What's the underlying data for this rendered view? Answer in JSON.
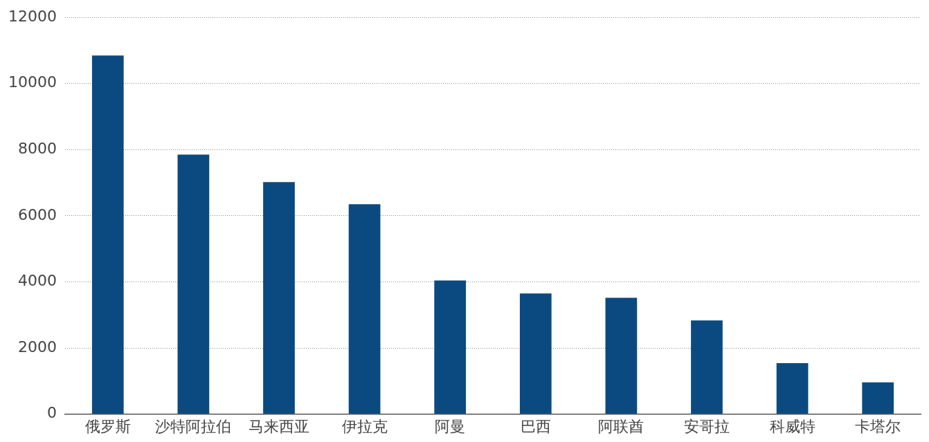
{
  "chart_data": {
    "type": "bar",
    "categories": [
      "俄罗斯",
      "沙特阿拉伯",
      "马来西亚",
      "伊拉克",
      "阿曼",
      "巴西",
      "阿联酋",
      "安哥拉",
      "科威特",
      "卡塔尔"
    ],
    "values": [
      10850,
      7850,
      7020,
      6350,
      4040,
      3650,
      3520,
      2830,
      1540,
      960
    ],
    "color": "#0b4a80",
    "ylim": [
      0,
      12000
    ],
    "yticks": [
      0,
      2000,
      4000,
      6000,
      8000,
      10000,
      12000
    ],
    "grid": "y",
    "legend": false
  }
}
